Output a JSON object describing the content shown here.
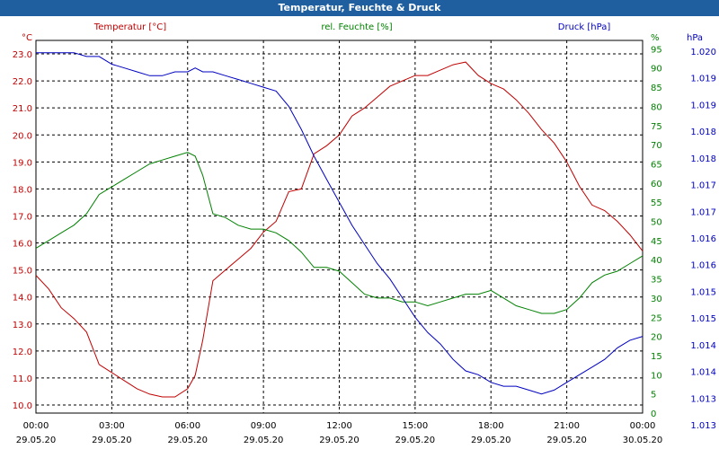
{
  "window": {
    "title": "Temperatur, Feuchte & Druck"
  },
  "chart_data": {
    "type": "line",
    "title": "Temperatur, Feuchte & Druck",
    "grid": true,
    "x_ticks": [
      {
        "time": "00:00",
        "date": "29.05.20"
      },
      {
        "time": "03:00",
        "date": "29.05.20"
      },
      {
        "time": "06:00",
        "date": "29.05.20"
      },
      {
        "time": "09:00",
        "date": "29.05.20"
      },
      {
        "time": "12:00",
        "date": "29.05.20"
      },
      {
        "time": "15:00",
        "date": "29.05.20"
      },
      {
        "time": "18:00",
        "date": "29.05.20"
      },
      {
        "time": "21:00",
        "date": "29.05.20"
      },
      {
        "time": "00:00",
        "date": "30.05.20"
      }
    ],
    "xlim_hours": [
      0,
      24
    ],
    "axes": {
      "temperature": {
        "unit": "°C",
        "color": "#c00000",
        "ylim": [
          9.7,
          23.5
        ],
        "ticks": [
          "10.0",
          "11.0",
          "12.0",
          "13.0",
          "14.0",
          "15.0",
          "16.0",
          "17.0",
          "18.0",
          "19.0",
          "20.0",
          "21.0",
          "22.0",
          "23.0"
        ]
      },
      "humidity": {
        "unit": "%",
        "color": "#008000",
        "ylim": [
          0,
          97.2
        ],
        "ticks": [
          "0",
          "5",
          "10",
          "15",
          "20",
          "25",
          "30",
          "35",
          "40",
          "45",
          "50",
          "55",
          "60",
          "65",
          "70",
          "75",
          "80",
          "85",
          "90",
          "95"
        ]
      },
      "pressure": {
        "unit": "hPa",
        "color": "#0000c0",
        "ticks": [
          "1.013",
          "1.013",
          "1.014",
          "1.014",
          "1.015",
          "1.015",
          "1.016",
          "1.016",
          "1.017",
          "1.017",
          "1.018",
          "1.018",
          "1.019",
          "1.019",
          "1.020"
        ]
      }
    },
    "series": [
      {
        "name": "Temperatur [°C]",
        "color": "#c00000",
        "axis": "temperature",
        "x": [
          0,
          0.5,
          1,
          1.5,
          2,
          2.5,
          3,
          3.5,
          4,
          4.5,
          5,
          5.5,
          6,
          6.3,
          6.6,
          7,
          7.5,
          8,
          8.5,
          9,
          9.5,
          10,
          10.5,
          11,
          11.5,
          12,
          12.5,
          13,
          13.5,
          14,
          14.5,
          15,
          15.5,
          16,
          16.5,
          17,
          17.5,
          18,
          18.5,
          19,
          19.5,
          20,
          20.5,
          21,
          21.5,
          22,
          22.5,
          23,
          23.5,
          24
        ],
        "y": [
          14.8,
          14.3,
          13.6,
          13.2,
          12.7,
          11.5,
          11.2,
          10.9,
          10.6,
          10.4,
          10.3,
          10.3,
          10.6,
          11.1,
          12.4,
          14.6,
          15.0,
          15.4,
          15.8,
          16.4,
          16.8,
          17.9,
          18.0,
          19.3,
          19.6,
          20.0,
          20.7,
          21.0,
          21.4,
          21.8,
          22.0,
          22.2,
          22.2,
          22.4,
          22.6,
          22.7,
          22.2,
          21.9,
          21.7,
          21.3,
          20.8,
          20.2,
          19.7,
          19.0,
          18.1,
          17.4,
          17.2,
          16.8,
          16.3,
          15.7
        ]
      },
      {
        "name": "rel. Feuchte [%]",
        "color": "#008000",
        "axis": "humidity",
        "x": [
          0,
          0.5,
          1,
          1.5,
          2,
          2.5,
          3,
          3.5,
          4,
          4.5,
          5,
          5.5,
          6,
          6.3,
          6.6,
          7,
          7.5,
          8,
          8.5,
          9,
          9.5,
          10,
          10.5,
          11,
          11.5,
          12,
          12.5,
          13,
          13.5,
          14,
          14.5,
          15,
          15.5,
          16,
          16.5,
          17,
          17.5,
          18,
          18.5,
          19,
          19.5,
          20,
          20.5,
          21,
          21.5,
          22,
          22.5,
          23,
          23.5,
          24
        ],
        "y": [
          43,
          45,
          47,
          49,
          52,
          57,
          59,
          61,
          63,
          65,
          66,
          67,
          68,
          67,
          62,
          52,
          51,
          49,
          48,
          48,
          47,
          45,
          42,
          38,
          38,
          37,
          34,
          31,
          30,
          30,
          29,
          29,
          28,
          29,
          30,
          31,
          31,
          32,
          30,
          28,
          27,
          26,
          26,
          27,
          30,
          34,
          36,
          37,
          39,
          41
        ]
      },
      {
        "name": "Druck [hPa]",
        "color": "#0000c0",
        "axis": "pressure",
        "x": [
          0,
          0.5,
          1,
          1.5,
          2,
          2.5,
          3,
          3.5,
          4,
          4.5,
          5,
          5.5,
          6,
          6.3,
          6.6,
          7,
          7.5,
          8,
          8.5,
          9,
          9.5,
          10,
          10.5,
          11,
          11.5,
          12,
          12.5,
          13,
          13.5,
          14,
          14.5,
          15,
          15.5,
          16,
          16.5,
          17,
          17.5,
          18,
          18.5,
          19,
          19.5,
          20,
          20.5,
          21,
          21.5,
          22,
          22.5,
          23,
          23.5,
          24
        ],
        "y": [
          94,
          94,
          94,
          94,
          93,
          93,
          91,
          90,
          89,
          88,
          88,
          89,
          89,
          90,
          89,
          89,
          88,
          87,
          86,
          85,
          84,
          80,
          74,
          67,
          61,
          55,
          49,
          44,
          39,
          35,
          30,
          25,
          21,
          18,
          14,
          11,
          10,
          8,
          7,
          7,
          6,
          5,
          6,
          8,
          10,
          12,
          14,
          17,
          19,
          20
        ]
      }
    ]
  }
}
